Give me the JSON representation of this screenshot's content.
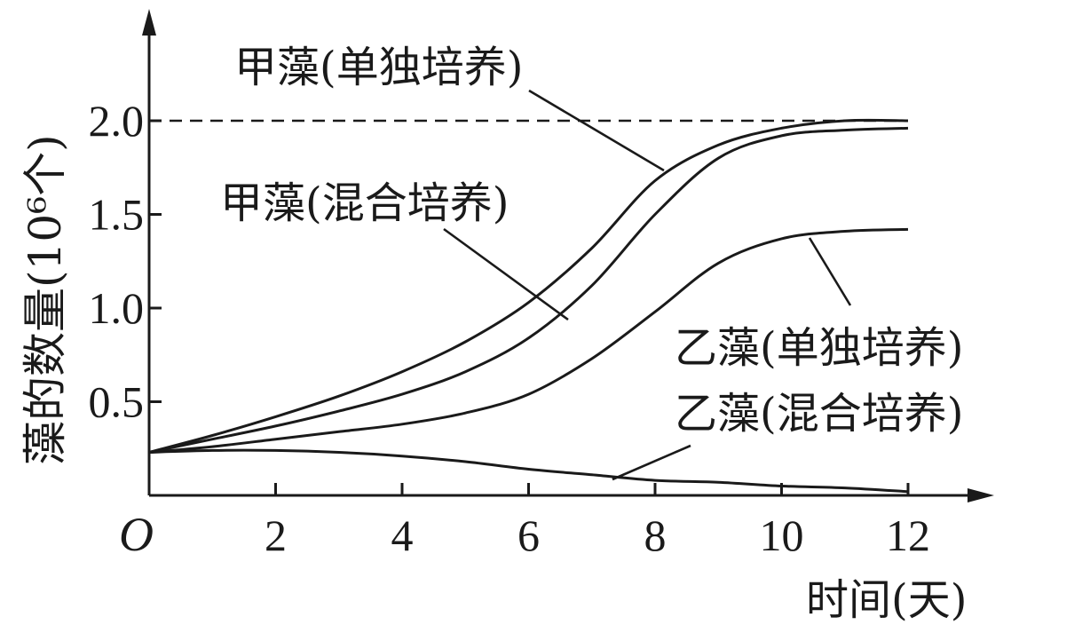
{
  "chart_data": {
    "type": "line",
    "xlabel": "时间(天)",
    "ylabel": "藻的数量(10⁶个)",
    "origin_label": "O",
    "xlim": [
      0,
      13
    ],
    "ylim": [
      0,
      2.5
    ],
    "x_ticks": [
      2,
      4,
      6,
      8,
      10,
      12
    ],
    "y_ticks": [
      0.5,
      1.0,
      1.5,
      2.0
    ],
    "x_tick_labels": [
      "2",
      "4",
      "6",
      "8",
      "10",
      "12"
    ],
    "y_tick_labels": [
      "0.5",
      "1.0",
      "1.5",
      "2.0"
    ],
    "reference_line": {
      "y": 2.0,
      "style": "dashed"
    },
    "series": [
      {
        "name": "甲藻(单独培养)",
        "x": [
          0,
          1,
          2,
          3,
          4,
          5,
          6,
          7,
          8,
          9,
          10,
          11,
          12
        ],
        "values": [
          0.23,
          0.32,
          0.42,
          0.53,
          0.66,
          0.82,
          1.03,
          1.32,
          1.68,
          1.87,
          1.96,
          2.0,
          2.0
        ]
      },
      {
        "name": "甲藻(混合培养)",
        "x": [
          0,
          1,
          2,
          3,
          4,
          5,
          6,
          7,
          8,
          9,
          10,
          11,
          12
        ],
        "values": [
          0.23,
          0.3,
          0.37,
          0.45,
          0.54,
          0.66,
          0.84,
          1.12,
          1.5,
          1.8,
          1.92,
          1.95,
          1.96
        ]
      },
      {
        "name": "乙藻(单独培养)",
        "x": [
          0,
          1,
          2,
          3,
          4,
          5,
          6,
          7,
          8,
          9,
          10,
          11,
          12
        ],
        "values": [
          0.23,
          0.26,
          0.3,
          0.34,
          0.38,
          0.44,
          0.54,
          0.73,
          0.98,
          1.24,
          1.37,
          1.41,
          1.42
        ]
      },
      {
        "name": "乙藻(混合培养)",
        "x": [
          0,
          1,
          2,
          3,
          4,
          5,
          6,
          7,
          8,
          9,
          10,
          11,
          12
        ],
        "values": [
          0.23,
          0.24,
          0.24,
          0.23,
          0.21,
          0.18,
          0.14,
          0.11,
          0.08,
          0.07,
          0.05,
          0.04,
          0.02
        ]
      }
    ]
  }
}
